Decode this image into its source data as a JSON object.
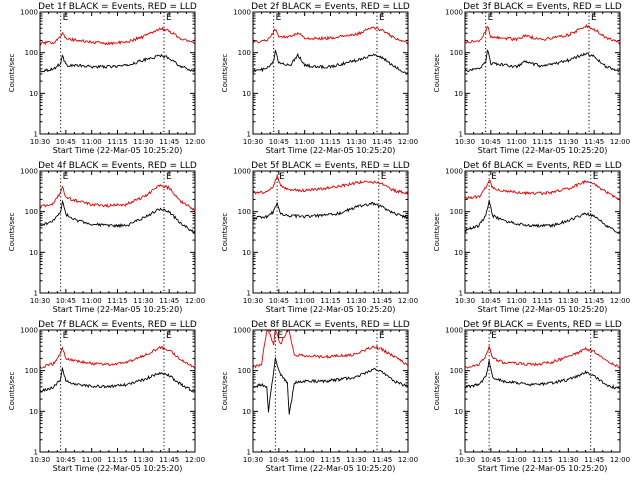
{
  "chart_data": [
    {
      "type": "line",
      "title": "Det 1f BLACK = Events, RED = LLD",
      "xlabel": "Start Time (22-Mar-05 10:25:20)",
      "ylabel": "Counts/sec",
      "yscale": "log",
      "ylim": [
        1,
        1000
      ],
      "xlim": [
        "10:30",
        "12:00"
      ],
      "x_ticks": [
        "10:30",
        "10:45",
        "11:00",
        "11:15",
        "11:30",
        "11:45",
        "12:00"
      ],
      "y_ticks": [
        "1",
        "10",
        "100",
        "1000"
      ],
      "markers": [
        {
          "time": "10:42",
          "label": "E"
        },
        {
          "time": "11:42",
          "label": "E"
        }
      ],
      "x": [
        "10:30",
        "10:38",
        "10:42",
        "10:43",
        "10:45",
        "10:52",
        "11:00",
        "11:10",
        "11:20",
        "11:30",
        "11:40",
        "11:45",
        "11:52",
        "12:00"
      ],
      "series": [
        {
          "name": "BLACK = Events",
          "color": "#000000",
          "values": [
            35,
            40,
            55,
            85,
            50,
            48,
            45,
            45,
            48,
            65,
            85,
            75,
            45,
            35
          ]
        },
        {
          "name": "RED = LLD",
          "color": "#e00000",
          "values": [
            170,
            180,
            260,
            300,
            220,
            200,
            180,
            170,
            180,
            250,
            400,
            340,
            220,
            170
          ]
        }
      ]
    },
    {
      "type": "line",
      "title": "Det 2f BLACK = Events, RED = LLD",
      "xlabel": "Start Time (22-Mar-05 10:25:20)",
      "ylabel": "Counts/sec",
      "yscale": "log",
      "ylim": [
        1,
        1000
      ],
      "xlim": [
        "10:30",
        "12:00"
      ],
      "x_ticks": [
        "10:30",
        "10:45",
        "11:00",
        "11:15",
        "11:30",
        "11:45",
        "12:00"
      ],
      "y_ticks": [
        "1",
        "10",
        "100",
        "1000"
      ],
      "markers": [
        {
          "time": "10:42",
          "label": "E"
        },
        {
          "time": "11:42",
          "label": "E"
        }
      ],
      "x": [
        "10:30",
        "10:38",
        "10:42",
        "10:43",
        "10:45",
        "10:52",
        "10:56",
        "11:00",
        "11:05",
        "11:15",
        "11:30",
        "11:40",
        "11:45",
        "11:52",
        "12:00"
      ],
      "series": [
        {
          "name": "BLACK = Events",
          "color": "#000000",
          "values": [
            35,
            40,
            60,
            110,
            55,
            50,
            90,
            50,
            45,
            45,
            65,
            90,
            75,
            45,
            30
          ]
        },
        {
          "name": "RED = LLD",
          "color": "#e00000",
          "values": [
            180,
            200,
            320,
            380,
            240,
            250,
            310,
            230,
            220,
            230,
            280,
            420,
            350,
            230,
            170
          ]
        }
      ]
    },
    {
      "type": "line",
      "title": "Det 3f BLACK = Events, RED = LLD",
      "xlabel": "Start Time (22-Mar-05 10:25:20)",
      "ylabel": "Counts/sec",
      "yscale": "log",
      "ylim": [
        1,
        1000
      ],
      "xlim": [
        "10:30",
        "12:00"
      ],
      "x_ticks": [
        "10:30",
        "10:45",
        "11:00",
        "11:15",
        "11:30",
        "11:45",
        "12:00"
      ],
      "y_ticks": [
        "1",
        "10",
        "100",
        "1000"
      ],
      "markers": [
        {
          "time": "10:42",
          "label": "E"
        },
        {
          "time": "11:42",
          "label": "E"
        }
      ],
      "x": [
        "10:30",
        "10:38",
        "10:42",
        "10:43",
        "10:45",
        "10:52",
        "11:00",
        "11:05",
        "11:15",
        "11:30",
        "11:40",
        "11:45",
        "11:52",
        "12:00"
      ],
      "series": [
        {
          "name": "BLACK = Events",
          "color": "#000000",
          "values": [
            35,
            40,
            60,
            120,
            55,
            50,
            45,
            60,
            45,
            65,
            95,
            80,
            45,
            35
          ]
        },
        {
          "name": "RED = LLD",
          "color": "#e00000",
          "values": [
            180,
            190,
            320,
            450,
            250,
            230,
            210,
            260,
            210,
            270,
            450,
            380,
            230,
            170
          ]
        }
      ]
    },
    {
      "type": "line",
      "title": "Det 4f BLACK = Events, RED = LLD",
      "xlabel": "Start Time (22-Mar-05 10:25:20)",
      "ylabel": "Counts/sec",
      "yscale": "log",
      "ylim": [
        1,
        1000
      ],
      "xlim": [
        "10:30",
        "12:00"
      ],
      "x_ticks": [
        "10:30",
        "10:45",
        "11:00",
        "11:15",
        "11:30",
        "11:45",
        "12:00"
      ],
      "y_ticks": [
        "1",
        "10",
        "100",
        "1000"
      ],
      "markers": [
        {
          "time": "10:42",
          "label": "E"
        },
        {
          "time": "11:42",
          "label": "E"
        }
      ],
      "x": [
        "10:30",
        "10:38",
        "10:42",
        "10:43",
        "10:45",
        "10:52",
        "11:00",
        "11:10",
        "11:20",
        "11:30",
        "11:40",
        "11:45",
        "11:52",
        "12:00"
      ],
      "series": [
        {
          "name": "BLACK = Events",
          "color": "#000000",
          "values": [
            45,
            60,
            100,
            180,
            85,
            60,
            50,
            45,
            45,
            70,
            120,
            100,
            50,
            30
          ]
        },
        {
          "name": "RED = LLD",
          "color": "#e00000",
          "values": [
            130,
            160,
            300,
            400,
            220,
            180,
            150,
            140,
            150,
            230,
            450,
            380,
            180,
            110
          ]
        }
      ]
    },
    {
      "type": "line",
      "title": "Det 5f BLACK = Events, RED = LLD",
      "xlabel": "Start Time (22-Mar-05 10:25:20)",
      "ylabel": "Counts/sec",
      "yscale": "log",
      "ylim": [
        1,
        1000
      ],
      "xlim": [
        "10:30",
        "12:00"
      ],
      "x_ticks": [
        "10:30",
        "10:45",
        "11:00",
        "11:15",
        "11:30",
        "11:45",
        "12:00"
      ],
      "y_ticks": [
        "1",
        "10",
        "100",
        "1000"
      ],
      "markers": [
        {
          "time": "10:44",
          "label": "E"
        },
        {
          "time": "11:43",
          "label": "E"
        }
      ],
      "x": [
        "10:30",
        "10:38",
        "10:42",
        "10:44",
        "10:46",
        "10:52",
        "11:00",
        "11:10",
        "11:20",
        "11:30",
        "11:40",
        "11:45",
        "11:52",
        "12:00"
      ],
      "series": [
        {
          "name": "BLACK = Events",
          "color": "#000000",
          "values": [
            70,
            75,
            100,
            170,
            90,
            80,
            75,
            80,
            90,
            130,
            160,
            130,
            90,
            70
          ]
        },
        {
          "name": "RED = LLD",
          "color": "#e00000",
          "values": [
            300,
            300,
            420,
            780,
            420,
            340,
            330,
            360,
            420,
            520,
            540,
            470,
            330,
            280
          ]
        }
      ]
    },
    {
      "type": "line",
      "title": "Det 6f BLACK = Events, RED = LLD",
      "xlabel": "Start Time (22-Mar-05 10:25:20)",
      "ylabel": "Counts/sec",
      "yscale": "log",
      "ylim": [
        1,
        1000
      ],
      "xlim": [
        "10:30",
        "12:00"
      ],
      "x_ticks": [
        "10:30",
        "10:45",
        "11:00",
        "11:15",
        "11:30",
        "11:45",
        "12:00"
      ],
      "y_ticks": [
        "1",
        "10",
        "100",
        "1000"
      ],
      "markers": [
        {
          "time": "10:44",
          "label": "E"
        },
        {
          "time": "11:43",
          "label": "E"
        }
      ],
      "x": [
        "10:30",
        "10:38",
        "10:42",
        "10:44",
        "10:46",
        "10:52",
        "11:00",
        "11:10",
        "11:20",
        "11:30",
        "11:40",
        "11:45",
        "11:52",
        "12:00"
      ],
      "series": [
        {
          "name": "BLACK = Events",
          "color": "#000000",
          "values": [
            35,
            45,
            80,
            190,
            80,
            60,
            50,
            45,
            45,
            60,
            90,
            80,
            45,
            30
          ]
        },
        {
          "name": "RED = LLD",
          "color": "#e00000",
          "values": [
            220,
            230,
            380,
            620,
            380,
            330,
            300,
            280,
            290,
            370,
            550,
            480,
            300,
            200
          ]
        }
      ]
    },
    {
      "type": "line",
      "title": "Det 7f BLACK = Events, RED = LLD",
      "xlabel": "Start Time (22-Mar-05 10:25:20)",
      "ylabel": "Counts/sec",
      "yscale": "log",
      "ylim": [
        1,
        1000
      ],
      "xlim": [
        "10:30",
        "12:00"
      ],
      "x_ticks": [
        "10:30",
        "10:45",
        "11:00",
        "11:15",
        "11:30",
        "11:45",
        "12:00"
      ],
      "y_ticks": [
        "1",
        "10",
        "100",
        "1000"
      ],
      "markers": [
        {
          "time": "10:42",
          "label": "E"
        },
        {
          "time": "11:42",
          "label": "E"
        }
      ],
      "x": [
        "10:30",
        "10:38",
        "10:42",
        "10:43",
        "10:45",
        "10:52",
        "11:00",
        "11:10",
        "11:20",
        "11:30",
        "11:40",
        "11:45",
        "11:52",
        "12:00"
      ],
      "series": [
        {
          "name": "BLACK = Events",
          "color": "#000000",
          "values": [
            30,
            40,
            60,
            120,
            55,
            45,
            42,
            40,
            45,
            60,
            90,
            75,
            45,
            30
          ]
        },
        {
          "name": "RED = LLD",
          "color": "#e00000",
          "values": [
            120,
            150,
            260,
            360,
            200,
            170,
            150,
            140,
            160,
            230,
            380,
            320,
            180,
            120
          ]
        }
      ]
    },
    {
      "type": "line",
      "title": "Det 8f BLACK = Events, RED = LLD",
      "xlabel": "Start Time (22-Mar-05 10:25:20)",
      "ylabel": "Counts/sec",
      "yscale": "log",
      "ylim": [
        1,
        1000
      ],
      "xlim": [
        "10:30",
        "12:00"
      ],
      "x_ticks": [
        "10:30",
        "10:45",
        "11:00",
        "11:15",
        "11:30",
        "11:45",
        "12:00"
      ],
      "y_ticks": [
        "1",
        "10",
        "100",
        "1000"
      ],
      "markers": [
        {
          "time": "10:43",
          "label": "E"
        },
        {
          "time": "11:42",
          "label": "E"
        }
      ],
      "x": [
        "10:30",
        "10:35",
        "10:38",
        "10:39",
        "10:42",
        "10:43",
        "10:46",
        "10:50",
        "10:51",
        "10:54",
        "11:00",
        "11:10",
        "11:20",
        "11:30",
        "11:40",
        "11:45",
        "11:52",
        "12:00"
      ],
      "series": [
        {
          "name": "BLACK = Events",
          "color": "#000000",
          "values": [
            40,
            45,
            40,
            10,
            100,
            200,
            80,
            50,
            8,
            50,
            55,
            55,
            60,
            70,
            110,
            90,
            55,
            40
          ]
        },
        {
          "name": "RED = LLD",
          "color": "#e00000",
          "values": [
            120,
            150,
            1000,
            1000,
            450,
            1000,
            450,
            1000,
            1000,
            250,
            230,
            220,
            230,
            250,
            400,
            330,
            220,
            140
          ]
        }
      ]
    },
    {
      "type": "line",
      "title": "Det 9f BLACK = Events, RED = LLD",
      "xlabel": "Start Time (22-Mar-05 10:25:20)",
      "ylabel": "Counts/sec",
      "yscale": "log",
      "ylim": [
        1,
        1000
      ],
      "xlim": [
        "10:30",
        "12:00"
      ],
      "x_ticks": [
        "10:30",
        "10:45",
        "11:00",
        "11:15",
        "11:30",
        "11:45",
        "12:00"
      ],
      "y_ticks": [
        "1",
        "10",
        "100",
        "1000"
      ],
      "markers": [
        {
          "time": "10:44",
          "label": "E"
        },
        {
          "time": "11:43",
          "label": "E"
        }
      ],
      "x": [
        "10:30",
        "10:38",
        "10:42",
        "10:44",
        "10:46",
        "10:52",
        "11:00",
        "11:10",
        "11:20",
        "11:30",
        "11:40",
        "11:45",
        "11:52",
        "12:00"
      ],
      "series": [
        {
          "name": "BLACK = Events",
          "color": "#000000",
          "values": [
            40,
            45,
            70,
            170,
            70,
            55,
            50,
            45,
            50,
            60,
            90,
            75,
            45,
            35
          ]
        },
        {
          "name": "RED = LLD",
          "color": "#e00000",
          "values": [
            120,
            140,
            230,
            380,
            200,
            160,
            150,
            140,
            160,
            220,
            340,
            300,
            170,
            120
          ]
        }
      ]
    }
  ]
}
